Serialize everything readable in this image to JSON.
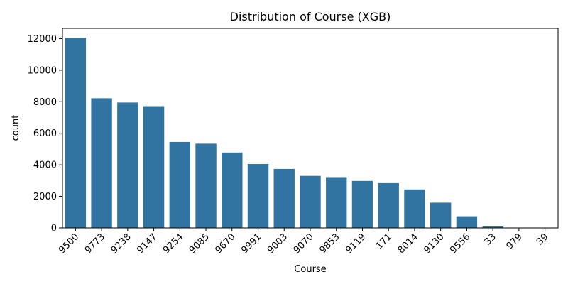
{
  "chart_data": {
    "type": "bar",
    "title": "Distribution of Course (XGB)",
    "xlabel": "Course",
    "ylabel": "count",
    "categories": [
      "9500",
      "9773",
      "9238",
      "9147",
      "9254",
      "9085",
      "9670",
      "9991",
      "9003",
      "9070",
      "9853",
      "9119",
      "171",
      "8014",
      "9130",
      "9556",
      "33",
      "979",
      "39"
    ],
    "values": [
      12050,
      8220,
      7950,
      7720,
      5450,
      5340,
      4780,
      4050,
      3740,
      3300,
      3220,
      2980,
      2840,
      2440,
      1600,
      740,
      90,
      8,
      4
    ],
    "ylim": [
      0,
      12650
    ],
    "yticks": [
      0,
      2000,
      4000,
      6000,
      8000,
      10000,
      12000
    ],
    "bar_color": "#3274a1",
    "grid": false,
    "legend": "none"
  }
}
